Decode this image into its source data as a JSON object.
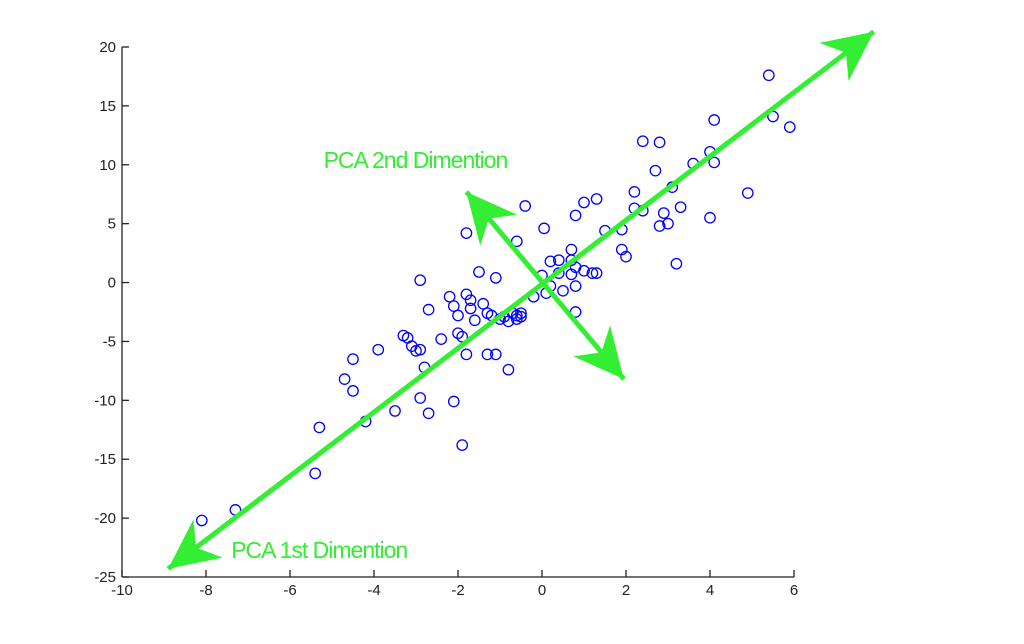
{
  "chart_data": {
    "type": "scatter",
    "title": "",
    "xlabel": "",
    "ylabel": "",
    "xlim": [
      -10,
      6
    ],
    "ylim": [
      -25,
      20
    ],
    "x_ticks": [
      -10,
      -8,
      -6,
      -4,
      -2,
      0,
      2,
      4,
      6
    ],
    "y_ticks": [
      -25,
      -20,
      -15,
      -10,
      -5,
      0,
      5,
      10,
      15,
      20
    ],
    "grid": false,
    "legend": null,
    "marker": "circle-open",
    "marker_color": "#0000ff",
    "series": [
      {
        "name": "data",
        "points": [
          [
            -8.1,
            -20.2
          ],
          [
            -7.3,
            -19.3
          ],
          [
            -5.4,
            -16.2
          ],
          [
            -5.3,
            -12.3
          ],
          [
            -4.2,
            -11.8
          ],
          [
            -3.5,
            -10.9
          ],
          [
            -2.9,
            -9.8
          ],
          [
            -2.7,
            -11.1
          ],
          [
            -2.1,
            -10.1
          ],
          [
            -1.9,
            -13.8
          ],
          [
            -4.7,
            -8.2
          ],
          [
            -4.5,
            -9.2
          ],
          [
            -4.5,
            -6.5
          ],
          [
            -3.9,
            -5.7
          ],
          [
            -3.3,
            -4.5
          ],
          [
            -3.2,
            -4.7
          ],
          [
            -3.1,
            -5.4
          ],
          [
            -3.0,
            -5.8
          ],
          [
            -2.9,
            -5.7
          ],
          [
            -2.8,
            -7.2
          ],
          [
            -2.9,
            0.2
          ],
          [
            -2.7,
            -2.3
          ],
          [
            -2.4,
            -4.8
          ],
          [
            -2.2,
            -1.2
          ],
          [
            -2.1,
            -2.0
          ],
          [
            -2.0,
            -2.8
          ],
          [
            -2.0,
            -4.3
          ],
          [
            -1.9,
            -4.6
          ],
          [
            -1.8,
            -1.0
          ],
          [
            -1.7,
            -1.5
          ],
          [
            -1.7,
            -2.2
          ],
          [
            -1.6,
            -3.2
          ],
          [
            -1.8,
            -6.1
          ],
          [
            -1.8,
            4.2
          ],
          [
            -1.5,
            0.9
          ],
          [
            -1.4,
            -1.8
          ],
          [
            -1.3,
            -2.6
          ],
          [
            -1.3,
            -6.1
          ],
          [
            -1.1,
            -6.1
          ],
          [
            -1.2,
            -2.8
          ],
          [
            -1.1,
            0.4
          ],
          [
            -1.0,
            -3.1
          ],
          [
            -0.9,
            -2.9
          ],
          [
            -0.8,
            -3.3
          ],
          [
            -0.8,
            -7.4
          ],
          [
            -0.7,
            -2.6
          ],
          [
            -0.6,
            -2.8
          ],
          [
            -0.6,
            -3.1
          ],
          [
            -0.5,
            -2.9
          ],
          [
            -0.5,
            -2.6
          ],
          [
            -0.6,
            3.5
          ],
          [
            -0.4,
            6.5
          ],
          [
            -0.2,
            -1.2
          ],
          [
            0.0,
            0.6
          ],
          [
            0.05,
            4.6
          ],
          [
            0.1,
            -0.9
          ],
          [
            0.2,
            -0.3
          ],
          [
            0.2,
            1.8
          ],
          [
            0.4,
            1.9
          ],
          [
            0.4,
            0.8
          ],
          [
            0.5,
            -0.7
          ],
          [
            0.7,
            2.8
          ],
          [
            0.7,
            1.9
          ],
          [
            0.7,
            0.7
          ],
          [
            0.8,
            1.3
          ],
          [
            0.8,
            -0.3
          ],
          [
            0.8,
            -2.5
          ],
          [
            0.8,
            5.7
          ],
          [
            1.0,
            6.8
          ],
          [
            1.0,
            1.0
          ],
          [
            1.2,
            0.8
          ],
          [
            1.3,
            7.1
          ],
          [
            1.3,
            0.8
          ],
          [
            1.5,
            4.4
          ],
          [
            1.9,
            4.5
          ],
          [
            1.9,
            2.8
          ],
          [
            2.0,
            2.2
          ],
          [
            2.2,
            6.3
          ],
          [
            2.2,
            7.7
          ],
          [
            2.4,
            6.1
          ],
          [
            2.4,
            12.0
          ],
          [
            2.7,
            9.5
          ],
          [
            2.8,
            11.9
          ],
          [
            2.8,
            4.8
          ],
          [
            2.9,
            5.9
          ],
          [
            3.0,
            5.0
          ],
          [
            3.1,
            8.1
          ],
          [
            3.2,
            1.6
          ],
          [
            3.3,
            6.4
          ],
          [
            3.6,
            10.1
          ],
          [
            4.0,
            11.1
          ],
          [
            4.0,
            5.5
          ],
          [
            4.1,
            10.2
          ],
          [
            4.1,
            13.8
          ],
          [
            4.9,
            7.6
          ],
          [
            5.4,
            17.6
          ],
          [
            5.5,
            14.1
          ],
          [
            5.9,
            13.2
          ]
        ]
      }
    ],
    "annotations": [
      {
        "text": "PCA 1st Dimention",
        "type": "double-arrow",
        "color": "#33ee33",
        "from": [
          -8.9,
          -24.3
        ],
        "to": [
          7.9,
          21.3
        ],
        "label_pos": [
          -7.4,
          -22.7
        ]
      },
      {
        "text": "PCA 2nd Dimention",
        "type": "double-arrow",
        "color": "#33ee33",
        "from": [
          -1.8,
          7.7
        ],
        "to": [
          1.95,
          -8.2
        ],
        "label_pos": [
          -5.2,
          10.4
        ]
      }
    ]
  },
  "axes": {
    "x_tick_labels": [
      "-10",
      "-8",
      "-6",
      "-4",
      "-2",
      "0",
      "2",
      "4",
      "6"
    ],
    "y_tick_labels": [
      "20",
      "15",
      "10",
      "5",
      "0",
      "-5",
      "-10",
      "-15",
      "-20",
      "-25"
    ]
  },
  "annotations": {
    "first_label": "PCA 1st Dimention",
    "second_label": "PCA 2nd Dimention"
  },
  "colors": {
    "marker": "#0000ff",
    "arrow": "#33ee33",
    "axis": "#222222"
  }
}
